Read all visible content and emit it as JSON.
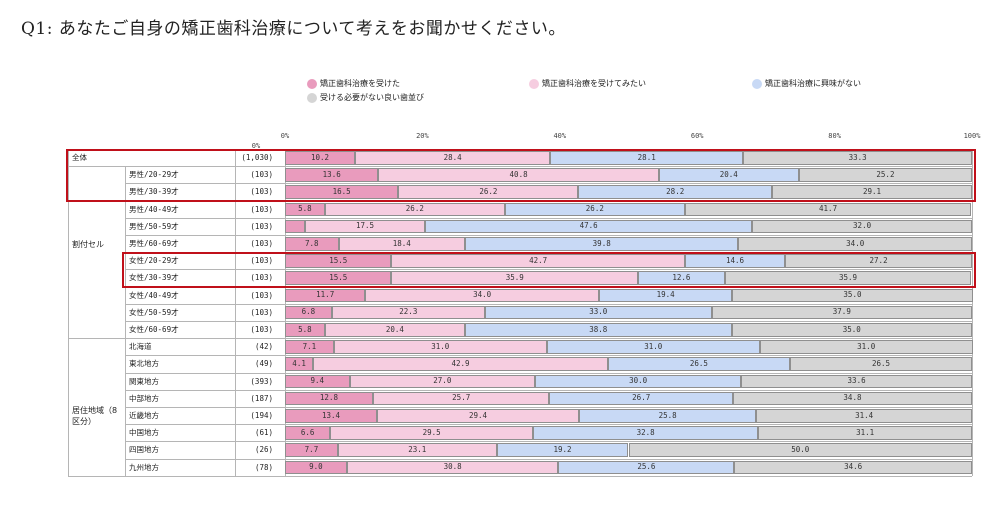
{
  "title": "Q1: あなたご自身の矯正歯科治療について考えをお聞かせください。",
  "colors": {
    "received": "#e99bbd",
    "want": "#f6cde0",
    "not_interested": "#c8d9f5",
    "not_needed": "#d5d5d5",
    "highlight": "#c0101a"
  },
  "chart_data": {
    "type": "bar",
    "stacked": true,
    "orientation": "horizontal",
    "legend": [
      "矯正歯科治療を受けた",
      "矯正歯科治療を受けてみたい",
      "矯正歯科治療に興味がない",
      "受ける必要がない良い歯並び"
    ],
    "x_ticks": [
      "0%",
      "20%",
      "40%",
      "60%",
      "80%",
      "100%"
    ],
    "xlim": [
      0,
      100
    ],
    "n_header": "0%",
    "groups": [
      {
        "label": "割付セル"
      },
      {
        "label": "居住地域（8区分）"
      }
    ],
    "rows": [
      {
        "label": "全体",
        "n": "(1,030)",
        "values": [
          10.2,
          28.4,
          28.1,
          33.3
        ],
        "highlight": true
      },
      {
        "label": "男性/20-29才",
        "n": "(103)",
        "values": [
          13.6,
          40.8,
          20.4,
          25.2
        ],
        "highlight": true
      },
      {
        "label": "男性/30-39才",
        "n": "(103)",
        "values": [
          16.5,
          26.2,
          28.2,
          29.1
        ],
        "highlight": true
      },
      {
        "label": "男性/40-49才",
        "n": "(103)",
        "values": [
          5.8,
          26.2,
          26.2,
          41.7
        ]
      },
      {
        "label": "男性/50-59才",
        "n": "(103)",
        "values": [
          2.9,
          17.5,
          47.6,
          32.0
        ],
        "labels": [
          "",
          "17.5",
          "47.6",
          "32.0"
        ]
      },
      {
        "label": "男性/60-69才",
        "n": "(103)",
        "values": [
          7.8,
          18.4,
          39.8,
          34.0
        ]
      },
      {
        "label": "女性/20-29才",
        "n": "(103)",
        "values": [
          15.5,
          42.7,
          14.6,
          27.2
        ],
        "highlight": true
      },
      {
        "label": "女性/30-39才",
        "n": "(103)",
        "values": [
          15.5,
          35.9,
          12.6,
          35.9
        ],
        "highlight": true
      },
      {
        "label": "女性/40-49才",
        "n": "(103)",
        "values": [
          11.7,
          34.0,
          19.4,
          35.0
        ]
      },
      {
        "label": "女性/50-59才",
        "n": "(103)",
        "values": [
          6.8,
          22.3,
          33.0,
          37.9
        ]
      },
      {
        "label": "女性/60-69才",
        "n": "(103)",
        "values": [
          5.8,
          20.4,
          38.8,
          35.0
        ]
      },
      {
        "label": "北海道",
        "n": "(42)",
        "values": [
          7.1,
          31.0,
          31.0,
          31.0
        ]
      },
      {
        "label": "東北地方",
        "n": "(49)",
        "values": [
          4.1,
          42.9,
          26.5,
          26.5
        ]
      },
      {
        "label": "関東地方",
        "n": "(393)",
        "values": [
          9.4,
          27.0,
          30.0,
          33.6
        ]
      },
      {
        "label": "中部地方",
        "n": "(187)",
        "values": [
          12.8,
          25.7,
          26.7,
          34.8
        ]
      },
      {
        "label": "近畿地方",
        "n": "(194)",
        "values": [
          13.4,
          29.4,
          25.8,
          31.4
        ]
      },
      {
        "label": "中国地方",
        "n": "(61)",
        "values": [
          6.6,
          29.5,
          32.8,
          31.1
        ]
      },
      {
        "label": "四国地方",
        "n": "(26)",
        "values": [
          7.7,
          23.1,
          19.2,
          50.0
        ]
      },
      {
        "label": "九州地方",
        "n": "(78)",
        "values": [
          9.0,
          30.8,
          25.6,
          34.6
        ]
      }
    ]
  }
}
